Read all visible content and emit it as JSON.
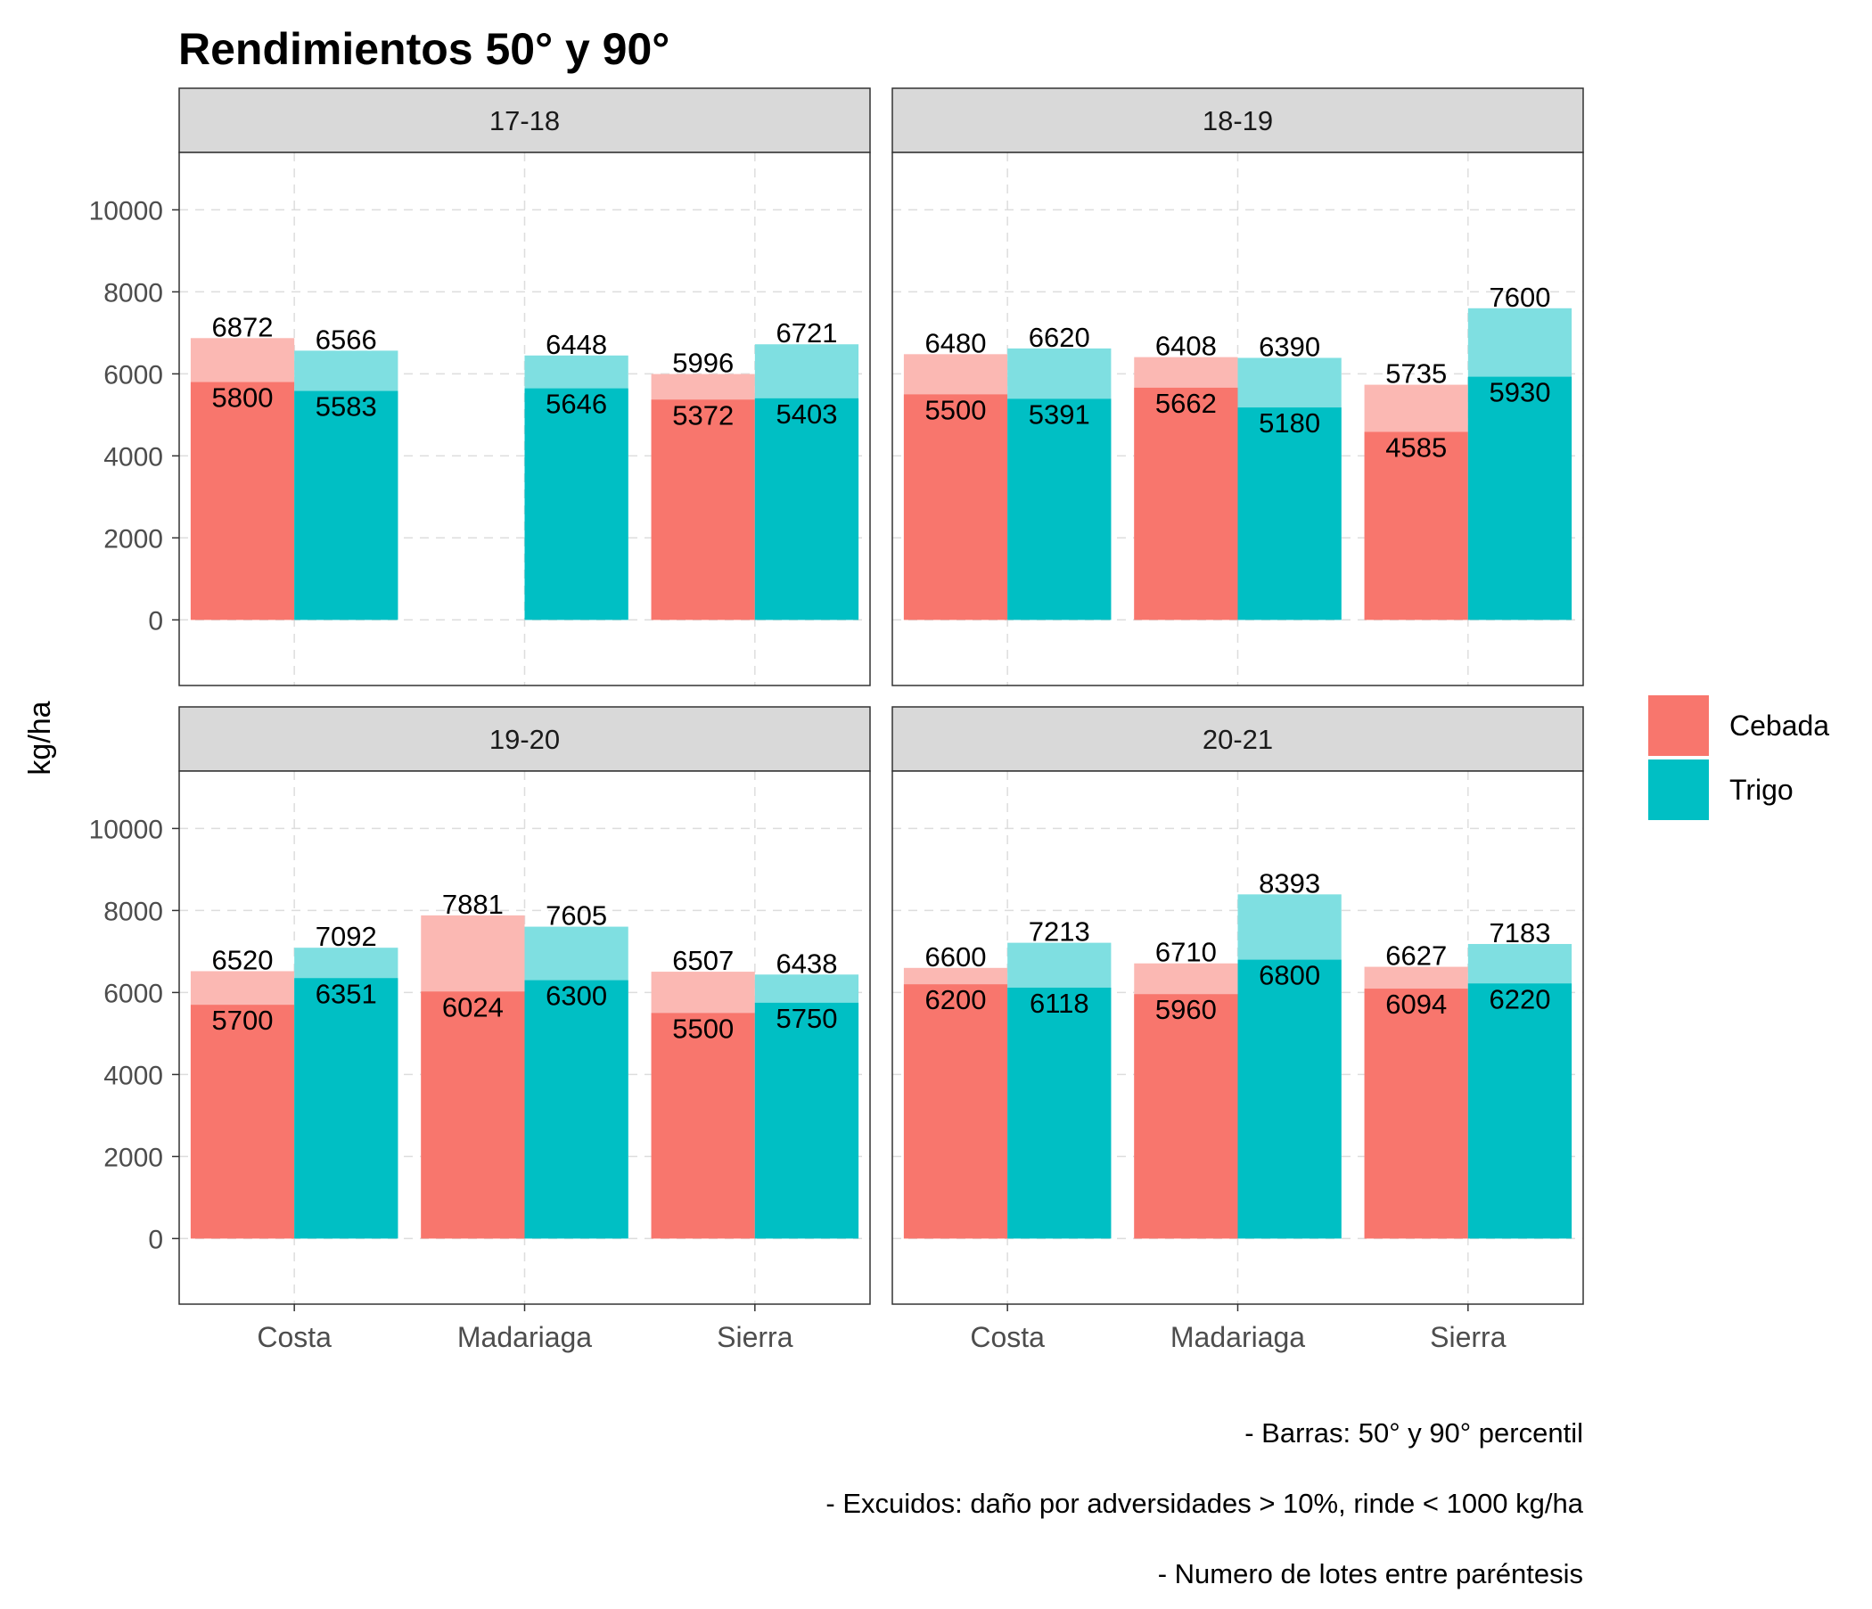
{
  "chart_data": {
    "type": "bar",
    "title": "Rendimientos 50° y 90°",
    "xlabel": "",
    "ylabel": "kg/ha",
    "ylim": [
      -1600,
      11400
    ],
    "yticks": [
      0,
      2000,
      4000,
      6000,
      8000,
      10000
    ],
    "grid": true,
    "legend_position": "right",
    "categories": [
      "Costa",
      "Madariaga",
      "Sierra"
    ],
    "series": [
      {
        "name": "Cebada",
        "color": "#F8766D",
        "light_color": "#FBB8B3"
      },
      {
        "name": "Trigo",
        "color": "#00BFC4",
        "light_color": "#7FDFE1"
      }
    ],
    "panels": [
      {
        "label": "17-18",
        "Cebada": {
          "p50": [
            5800,
            null,
            5372
          ],
          "p90": [
            6872,
            null,
            5996
          ]
        },
        "Trigo": {
          "p50": [
            5583,
            5646,
            5403
          ],
          "p90": [
            6566,
            6448,
            6721
          ]
        }
      },
      {
        "label": "18-19",
        "Cebada": {
          "p50": [
            5500,
            5662,
            4585
          ],
          "p90": [
            6480,
            6408,
            5735
          ]
        },
        "Trigo": {
          "p50": [
            5391,
            5180,
            5930
          ],
          "p90": [
            6620,
            6390,
            7600
          ]
        }
      },
      {
        "label": "19-20",
        "Cebada": {
          "p50": [
            5700,
            6024,
            5500
          ],
          "p90": [
            6520,
            7881,
            6507
          ]
        },
        "Trigo": {
          "p50": [
            6351,
            6300,
            5750
          ],
          "p90": [
            7092,
            7605,
            6438
          ]
        }
      },
      {
        "label": "20-21",
        "Cebada": {
          "p50": [
            6200,
            5960,
            6094
          ],
          "p90": [
            6600,
            6710,
            6627
          ]
        },
        "Trigo": {
          "p50": [
            6118,
            6800,
            6220
          ],
          "p90": [
            7213,
            8393,
            7183
          ]
        }
      }
    ],
    "caption": [
      "- Barras: 50° y 90° percentil",
      "- Excuidos: daño por adversidades > 10%, rinde < 1000 kg/ha",
      "- Numero de lotes entre paréntesis"
    ]
  }
}
